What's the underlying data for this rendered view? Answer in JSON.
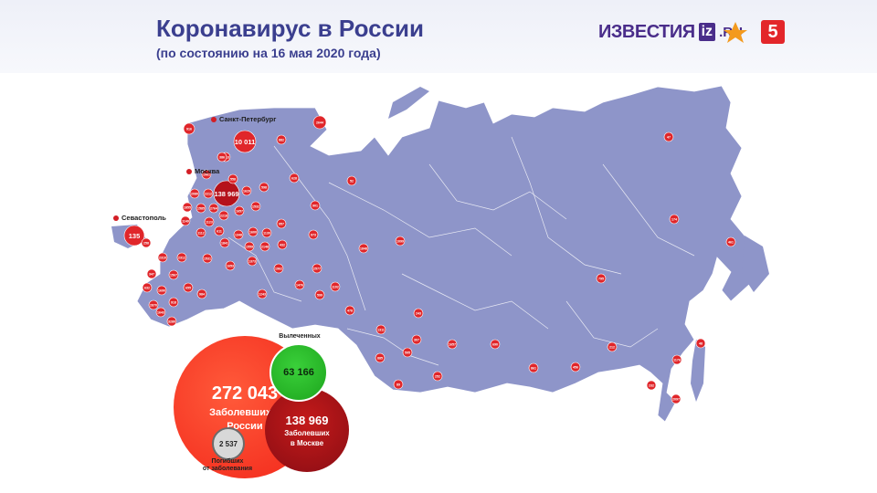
{
  "header": {
    "title": "Коронавирус в России",
    "subtitle": "(по состоянию на 16 мая 2020 года)",
    "logos": {
      "izvestia_word": "ИЗВЕСТИЯ",
      "iz_badge": "iz",
      "domain": ".RU",
      "channel5": "5"
    }
  },
  "colors": {
    "map_fill": "#8e95c9",
    "region_dot": "#e0262a",
    "cases": "#f2261a",
    "moscow": "#a01018",
    "recovered": "#22b722",
    "deaths": "#d8d8d8",
    "title": "#3b3f8f"
  },
  "cities": {
    "spb": "Санкт-Петербург",
    "moscow": "Москва",
    "sevastopol": "Севастополь"
  },
  "summary": {
    "cases": {
      "value": "272 043",
      "label_line1": "Заболевших в",
      "label_line2": "России"
    },
    "moscow": {
      "value": "138 969",
      "label_line1": "Заболевших",
      "label_line2": "в Москве"
    },
    "recovered": {
      "value": "63 166",
      "label": "Вылеченных"
    },
    "deaths": {
      "value": "2 537",
      "label_line1": "Погибших",
      "label_line2": "от заболевания"
    }
  },
  "regions": [
    {
      "value": "10 011"
    },
    {
      "value": "138 969"
    },
    {
      "value": "135"
    },
    {
      "value": "2644"
    },
    {
      "value": "916"
    },
    {
      "value": "882"
    },
    {
      "value": "1013"
    },
    {
      "value": "386"
    },
    {
      "value": "1061"
    },
    {
      "value": "558"
    },
    {
      "value": "628"
    },
    {
      "value": "52"
    },
    {
      "value": "1629"
    },
    {
      "value": "598"
    },
    {
      "value": "2080"
    },
    {
      "value": "2212"
    },
    {
      "value": "1855"
    },
    {
      "value": "1585"
    },
    {
      "value": "2764"
    },
    {
      "value": "1657"
    },
    {
      "value": "1532"
    },
    {
      "value": "1149"
    },
    {
      "value": "1123"
    },
    {
      "value": "2218"
    },
    {
      "value": "1112"
    },
    {
      "value": "611"
    },
    {
      "value": "1348"
    },
    {
      "value": "1600"
    },
    {
      "value": "1130"
    },
    {
      "value": "957"
    },
    {
      "value": "901"
    },
    {
      "value": "1841"
    },
    {
      "value": "1559"
    },
    {
      "value": "2148"
    },
    {
      "value": "432"
    },
    {
      "value": "973"
    },
    {
      "value": "258"
    },
    {
      "value": "2310"
    },
    {
      "value": "2312"
    },
    {
      "value": "1531"
    },
    {
      "value": "1653"
    },
    {
      "value": "1373"
    },
    {
      "value": "1962"
    },
    {
      "value": "2577"
    },
    {
      "value": "347"
    },
    {
      "value": "1567"
    },
    {
      "value": "632"
    },
    {
      "value": "1690"
    },
    {
      "value": "655"
    },
    {
      "value": "984"
    },
    {
      "value": "1243"
    },
    {
      "value": "1476"
    },
    {
      "value": "599"
    },
    {
      "value": "1102"
    },
    {
      "value": "1848"
    },
    {
      "value": "1099"
    },
    {
      "value": "918"
    },
    {
      "value": "2870"
    },
    {
      "value": "1643"
    },
    {
      "value": "3280"
    },
    {
      "value": "478"
    },
    {
      "value": "1311"
    },
    {
      "value": "243"
    },
    {
      "value": "307"
    },
    {
      "value": "595"
    },
    {
      "value": "885"
    },
    {
      "value": "252"
    },
    {
      "value": "1657"
    },
    {
      "value": "690"
    },
    {
      "value": "861"
    },
    {
      "value": "456"
    },
    {
      "value": "89"
    },
    {
      "value": "795"
    },
    {
      "value": "212"
    },
    {
      "value": "1176"
    },
    {
      "value": "232"
    },
    {
      "value": "2097"
    },
    {
      "value": "48"
    },
    {
      "value": "47"
    },
    {
      "value": "174"
    },
    {
      "value": "461"
    }
  ]
}
